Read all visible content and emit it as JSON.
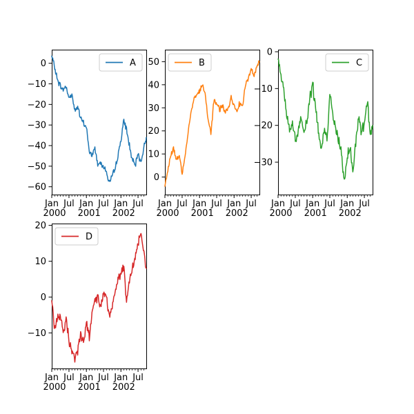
{
  "figure": {
    "background": "#ffffff",
    "axis_color": "#000000",
    "text_color": "#000000",
    "legend_border_color": "#cccccc",
    "legend_background": "#ffffff",
    "tick_font_px": 13
  },
  "chart_data": [
    {
      "type": "line",
      "name": "A",
      "legend_label": "A",
      "legend_position": "upper-right",
      "color": "#1f77b4",
      "x_unit": "days since 2000-01-01",
      "xlim": [
        0,
        999
      ],
      "ylim": [
        -63.8,
        6.6
      ],
      "grid": false,
      "y_ticks": [
        {
          "value": 0,
          "label": "0"
        },
        {
          "value": -10,
          "label": "−10"
        },
        {
          "value": -20,
          "label": "−20"
        },
        {
          "value": -30,
          "label": "−30"
        },
        {
          "value": -40,
          "label": "−40"
        },
        {
          "value": -50,
          "label": "−50"
        },
        {
          "value": -60,
          "label": "−60"
        }
      ],
      "x_major_ticks": [
        {
          "day": 0,
          "label": "Jan",
          "year": "2000"
        },
        {
          "day": 182,
          "label": "Jul",
          "year": ""
        },
        {
          "day": 366,
          "label": "Jan",
          "year": "2001"
        },
        {
          "day": 547,
          "label": "Jul",
          "year": ""
        },
        {
          "day": 731,
          "label": "Jan",
          "year": "2002"
        },
        {
          "day": 912,
          "label": "Jul",
          "year": ""
        }
      ],
      "x_minor_tick_days": [
        0,
        31,
        60,
        91,
        121,
        152,
        182,
        213,
        244,
        274,
        305,
        335,
        366,
        397,
        425,
        456,
        486,
        517,
        547,
        578,
        609,
        639,
        670,
        700,
        731,
        762,
        790,
        821,
        851,
        882,
        912,
        943,
        974
      ],
      "series_days": [
        0,
        31,
        60,
        91,
        121,
        152,
        182,
        213,
        244,
        274,
        305,
        335,
        366,
        397,
        425,
        456,
        486,
        517,
        547,
        578,
        609,
        639,
        670,
        700,
        731,
        762,
        790,
        821,
        851,
        882,
        912,
        943,
        974,
        999
      ],
      "series_values": [
        3.5,
        -2,
        -8,
        -11,
        -13,
        -11,
        -17,
        -15,
        -23,
        -21,
        -27,
        -29,
        -31,
        -43,
        -45,
        -41,
        -49,
        -48,
        -50,
        -53,
        -58,
        -55,
        -51,
        -45,
        -37,
        -28,
        -32,
        -40,
        -47,
        -50,
        -44,
        -48,
        -41,
        -36
      ],
      "noise": 1.7,
      "seed": 7
    },
    {
      "type": "line",
      "name": "B",
      "legend_label": "B",
      "legend_position": "upper-left",
      "color": "#ff7f0e",
      "x_unit": "days since 2000-01-01",
      "xlim": [
        0,
        999
      ],
      "ylim": [
        -7.6,
        55.2
      ],
      "grid": false,
      "y_ticks": [
        {
          "value": 0,
          "label": "0"
        },
        {
          "value": 10,
          "label": "10"
        },
        {
          "value": 20,
          "label": "20"
        },
        {
          "value": 30,
          "label": "30"
        },
        {
          "value": 40,
          "label": "40"
        },
        {
          "value": 50,
          "label": "50"
        }
      ],
      "x_major_ticks": [
        {
          "day": 0,
          "label": "Jan",
          "year": "2000"
        },
        {
          "day": 182,
          "label": "Jul",
          "year": ""
        },
        {
          "day": 366,
          "label": "Jan",
          "year": "2001"
        },
        {
          "day": 547,
          "label": "Jul",
          "year": ""
        },
        {
          "day": 731,
          "label": "Jan",
          "year": "2002"
        },
        {
          "day": 912,
          "label": "Jul",
          "year": ""
        }
      ],
      "x_minor_tick_days": [
        0,
        31,
        60,
        91,
        121,
        152,
        182,
        213,
        244,
        274,
        305,
        335,
        366,
        397,
        425,
        456,
        486,
        517,
        547,
        578,
        609,
        639,
        670,
        700,
        731,
        762,
        790,
        821,
        851,
        882,
        912,
        943,
        974
      ],
      "series_days": [
        0,
        31,
        60,
        91,
        121,
        152,
        182,
        213,
        244,
        274,
        305,
        335,
        366,
        397,
        425,
        456,
        486,
        517,
        547,
        578,
        609,
        639,
        670,
        700,
        731,
        762,
        790,
        821,
        851,
        882,
        912,
        943,
        974,
        999
      ],
      "series_values": [
        -4,
        3,
        9,
        13,
        7,
        10,
        1,
        9,
        19,
        28,
        34,
        36,
        37,
        40,
        36,
        25,
        19,
        33,
        32,
        29,
        31,
        28,
        30,
        35,
        31,
        29,
        32,
        31,
        40,
        43,
        46,
        44,
        48,
        50
      ],
      "noise": 1.5,
      "seed": 13
    },
    {
      "type": "line",
      "name": "C",
      "legend_label": "C",
      "legend_position": "upper-right",
      "color": "#2ca02c",
      "x_unit": "days since 2000-01-01",
      "xlim": [
        0,
        999
      ],
      "ylim": [
        -38.8,
        0.56
      ],
      "grid": false,
      "y_ticks": [
        {
          "value": 0,
          "label": "0"
        },
        {
          "value": -10,
          "label": "−10"
        },
        {
          "value": -20,
          "label": "−20"
        },
        {
          "value": -30,
          "label": "−30"
        }
      ],
      "x_major_ticks": [
        {
          "day": 0,
          "label": "Jan",
          "year": "2000"
        },
        {
          "day": 182,
          "label": "Jul",
          "year": ""
        },
        {
          "day": 366,
          "label": "Jan",
          "year": "2001"
        },
        {
          "day": 547,
          "label": "Jul",
          "year": ""
        },
        {
          "day": 731,
          "label": "Jan",
          "year": "2002"
        },
        {
          "day": 912,
          "label": "Jul",
          "year": ""
        }
      ],
      "x_minor_tick_days": [
        0,
        31,
        60,
        91,
        121,
        152,
        182,
        213,
        244,
        274,
        305,
        335,
        366,
        397,
        425,
        456,
        486,
        517,
        547,
        578,
        609,
        639,
        670,
        700,
        731,
        762,
        790,
        821,
        851,
        882,
        912,
        943,
        974
      ],
      "series_days": [
        0,
        31,
        60,
        91,
        121,
        152,
        182,
        213,
        244,
        274,
        305,
        335,
        366,
        397,
        425,
        456,
        486,
        517,
        547,
        578,
        609,
        639,
        670,
        700,
        731,
        762,
        790,
        821,
        851,
        882,
        912,
        943,
        974,
        999
      ],
      "series_values": [
        -2,
        -7,
        -10,
        -17,
        -22,
        -19,
        -24,
        -21,
        -18,
        -22,
        -19,
        -13,
        -9,
        -15,
        -21,
        -27,
        -21,
        -24,
        -11,
        -17,
        -21,
        -24,
        -28,
        -35,
        -28,
        -26,
        -32,
        -24,
        -18,
        -22,
        -20,
        -13,
        -22,
        -20
      ],
      "noise": 1.8,
      "seed": 21
    },
    {
      "type": "line",
      "name": "D",
      "legend_label": "D",
      "legend_position": "upper-left",
      "color": "#d62728",
      "x_unit": "days since 2000-01-01",
      "xlim": [
        0,
        999
      ],
      "ylim": [
        -19.9,
        20.5
      ],
      "grid": false,
      "y_ticks": [
        {
          "value": 20,
          "label": "20"
        },
        {
          "value": 10,
          "label": "10"
        },
        {
          "value": 0,
          "label": "0"
        },
        {
          "value": -10,
          "label": "−10"
        }
      ],
      "x_major_ticks": [
        {
          "day": 0,
          "label": "Jan",
          "year": "2000"
        },
        {
          "day": 182,
          "label": "Jul",
          "year": ""
        },
        {
          "day": 366,
          "label": "Jan",
          "year": "2001"
        },
        {
          "day": 547,
          "label": "Jul",
          "year": ""
        },
        {
          "day": 731,
          "label": "Jan",
          "year": "2002"
        },
        {
          "day": 912,
          "label": "Jul",
          "year": ""
        }
      ],
      "x_minor_tick_days": [
        0,
        31,
        60,
        91,
        121,
        152,
        182,
        213,
        244,
        274,
        305,
        335,
        366,
        397,
        425,
        456,
        486,
        517,
        547,
        578,
        609,
        639,
        670,
        700,
        731,
        762,
        790,
        821,
        851,
        882,
        912,
        943,
        974
      ],
      "series_days": [
        0,
        31,
        60,
        91,
        121,
        152,
        182,
        213,
        244,
        274,
        305,
        335,
        366,
        397,
        425,
        456,
        486,
        517,
        547,
        578,
        609,
        639,
        670,
        700,
        731,
        762,
        790,
        821,
        851,
        882,
        912,
        943,
        974,
        999
      ],
      "series_values": [
        -1,
        -9,
        -6,
        -5,
        -10,
        -6,
        -12,
        -15,
        -17,
        -15,
        -10,
        -13,
        -7,
        -11,
        -4,
        -1,
        0,
        -3,
        2,
        0,
        -5,
        -3,
        2,
        5,
        6,
        9,
        -2,
        5,
        8,
        11,
        15,
        18,
        12,
        8
      ],
      "noise": 1.5,
      "seed": 42
    }
  ]
}
